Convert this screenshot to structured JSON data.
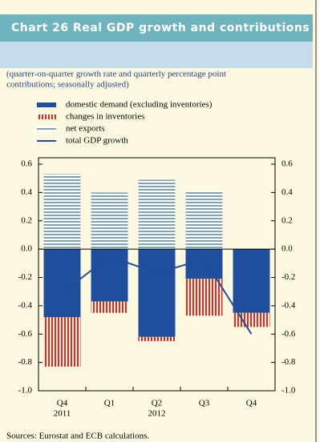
{
  "chart_data": {
    "type": "bar",
    "title": "Chart 26 Real GDP growth and contributions",
    "subtitle": [
      "(quarter-on-quarter growth rate and quarterly percentage point",
      "contributions; seasonally adjusted)"
    ],
    "categories": [
      "Q4",
      "Q1",
      "Q2",
      "Q3",
      "Q4"
    ],
    "years": [
      "2011",
      null,
      "2012",
      null,
      null
    ],
    "series": [
      {
        "name": "domestic demand (excluding inventories)",
        "color": "#1f4e9c",
        "kind": "bar",
        "values": [
          -0.48,
          -0.37,
          -0.62,
          -0.21,
          -0.45
        ]
      },
      {
        "name": "changes in inventories",
        "color": "#c0392b",
        "kind": "bar",
        "values": [
          -0.35,
          -0.08,
          -0.03,
          -0.26,
          -0.1
        ]
      },
      {
        "name": "net exports",
        "color": "#7fa3b3",
        "kind": "bar",
        "values": [
          0.53,
          0.4,
          0.49,
          0.41,
          null
        ]
      },
      {
        "name": "total GDP growth",
        "color": "#1f4e9c",
        "kind": "line",
        "values": [
          -0.31,
          -0.05,
          -0.17,
          -0.07,
          -0.6
        ]
      }
    ],
    "ylim": [
      -1.0,
      0.6
    ],
    "yticks": [
      0.6,
      0.4,
      0.2,
      {
        "value": 0,
        "label": "0.0"
      },
      -0.2,
      -0.4,
      -0.6,
      -0.8,
      {
        "value": -1,
        "label": "-1.0"
      }
    ],
    "y2lim": [
      -1.0,
      0.6
    ],
    "y2ticks": [
      0.6,
      0.4,
      0.2,
      {
        "value": 0,
        "label": "0.0"
      },
      -0.2,
      -0.4,
      -0.6,
      -0.8,
      {
        "value": -1,
        "label": "-1.0"
      }
    ],
    "source": "Sources: Eurostat and ECB calculations."
  }
}
